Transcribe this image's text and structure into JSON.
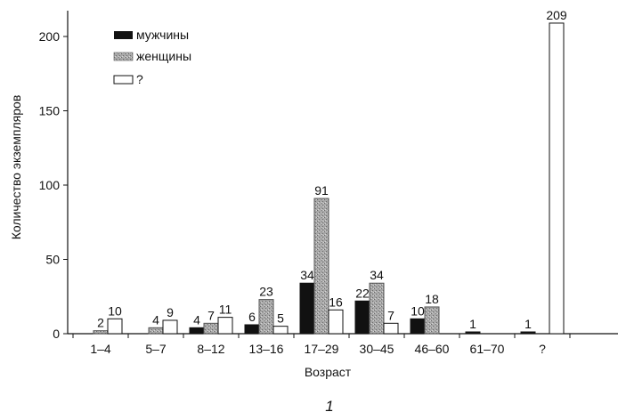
{
  "chart_data": {
    "type": "bar",
    "categories": [
      "1–4",
      "5–7",
      "8–12",
      "13–16",
      "17–29",
      "30–45",
      "46–60",
      "61–70",
      "?"
    ],
    "series": [
      {
        "name": "мужчины",
        "values": [
          0,
          0,
          4,
          6,
          34,
          22,
          10,
          1,
          1
        ],
        "color": "#111111",
        "pattern": "solid"
      },
      {
        "name": "женщины",
        "values": [
          2,
          4,
          7,
          23,
          91,
          34,
          18,
          0,
          0
        ],
        "color": "#9a9a9a",
        "pattern": "stipple"
      },
      {
        "name": "?",
        "values": [
          10,
          9,
          11,
          5,
          16,
          7,
          0,
          0,
          209
        ],
        "color": "#ffffff",
        "pattern": "hollow"
      }
    ],
    "data_labels": [
      [
        null,
        null,
        "4",
        "6",
        "34",
        "22",
        "10",
        "1",
        "1"
      ],
      [
        "2",
        "4",
        "7",
        "23",
        "91",
        "34",
        "18",
        null,
        null
      ],
      [
        "10",
        "9",
        "11",
        "5",
        "16",
        "7",
        null,
        null,
        "209"
      ]
    ],
    "xlabel": "Возраст",
    "ylabel": "Количество экземпляров",
    "yticks": [
      0,
      50,
      100,
      150,
      200
    ],
    "ylim": [
      0,
      215
    ],
    "grid": false,
    "legend_position": "top-left",
    "caption": "1"
  }
}
